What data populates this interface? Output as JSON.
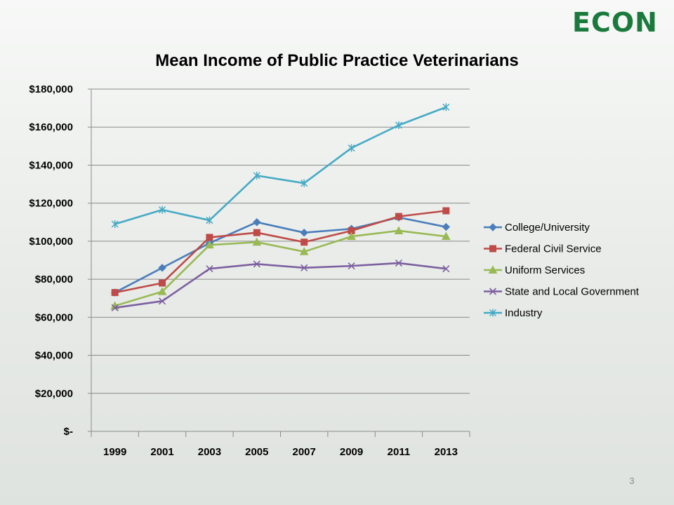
{
  "logo": {
    "text": "ECON"
  },
  "page_number": "3",
  "chart_data": {
    "type": "line",
    "title": "Mean Income of Public Practice Veterinarians",
    "xlabel": "",
    "ylabel": "",
    "categories": [
      "1999",
      "2001",
      "2003",
      "2005",
      "2007",
      "2009",
      "2011",
      "2013"
    ],
    "ylim": [
      0,
      180000
    ],
    "yticks": [
      0,
      20000,
      40000,
      60000,
      80000,
      100000,
      120000,
      140000,
      160000,
      180000
    ],
    "ytick_labels": [
      "$-",
      "$20,000",
      "$40,000",
      "$60,000",
      "$80,000",
      "$100,000",
      "$120,000",
      "$140,000",
      "$160,000",
      "$180,000"
    ],
    "grid": true,
    "legend_position": "right",
    "series": [
      {
        "name": "College/University",
        "color": "#4a7ebb",
        "marker": "diamond",
        "values": [
          73000,
          86000,
          99000,
          110000,
          104500,
          106500,
          112500,
          107500
        ]
      },
      {
        "name": "Federal Civil Service",
        "color": "#be4b48",
        "marker": "square",
        "values": [
          73000,
          78000,
          102000,
          104500,
          99500,
          105500,
          113000,
          116000
        ]
      },
      {
        "name": "Uniform Services",
        "color": "#98b954",
        "marker": "triangle",
        "values": [
          66000,
          73500,
          98000,
          99500,
          94500,
          102500,
          105500,
          102500
        ]
      },
      {
        "name": "State and Local Government",
        "color": "#7d60a0",
        "marker": "x",
        "values": [
          65000,
          68500,
          85500,
          88000,
          86000,
          87000,
          88500,
          85500
        ]
      },
      {
        "name": "Industry",
        "color": "#46aac5",
        "marker": "star",
        "values": [
          109000,
          116500,
          111000,
          134500,
          130500,
          149000,
          161000,
          170500
        ]
      }
    ]
  }
}
